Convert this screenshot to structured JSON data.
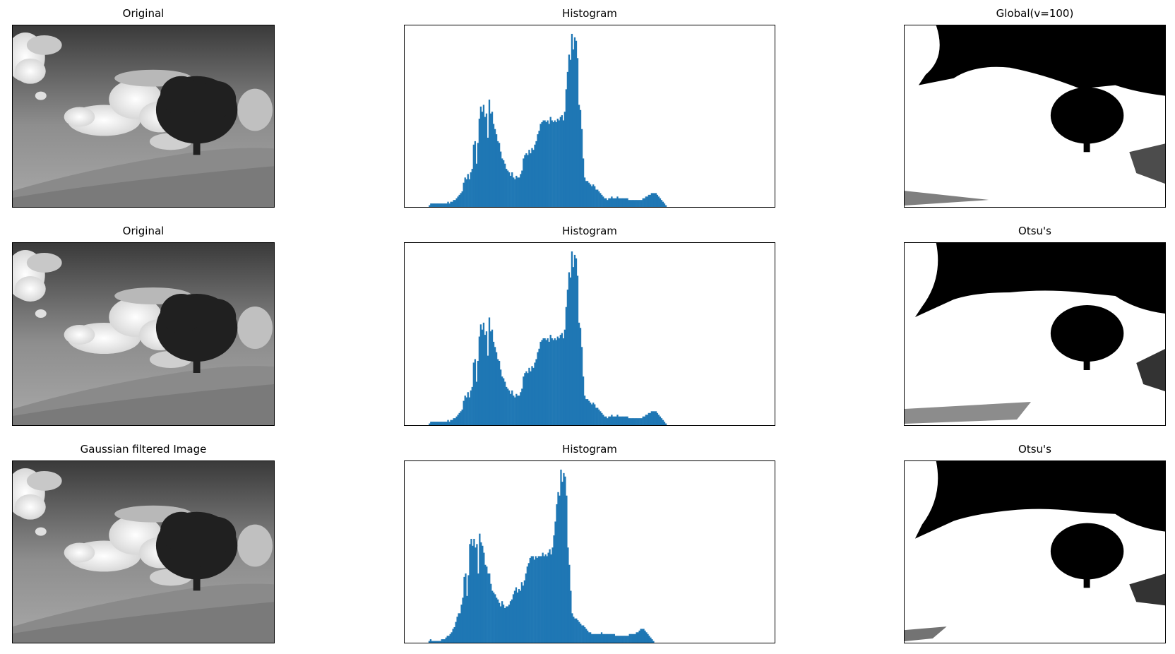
{
  "figure": {
    "rows": [
      {
        "image_title": "Original",
        "hist_title": "Histogram",
        "thresh_title": "Global(v=100)"
      },
      {
        "image_title": "Original",
        "hist_title": "Histogram",
        "thresh_title": "Otsu's"
      },
      {
        "image_title": "Gaussian filtered Image",
        "hist_title": "Histogram",
        "thresh_title": "Otsu's"
      }
    ]
  },
  "chart_data": [
    {
      "type": "bar",
      "title": "Histogram",
      "bin_range": [
        0,
        255
      ],
      "ylim": [
        0,
        1
      ],
      "grid": false,
      "ticks": false,
      "color": "#1f77b4",
      "values": [
        0.0,
        0.0,
        0.0,
        0.0,
        0.0,
        0.0,
        0.0,
        0.0,
        0.0,
        0.0,
        0.0,
        0.0,
        0.01,
        0.02,
        0.02,
        0.02,
        0.02,
        0.02,
        0.02,
        0.02,
        0.02,
        0.02,
        0.02,
        0.02,
        0.02,
        0.03,
        0.02,
        0.03,
        0.03,
        0.04,
        0.04,
        0.05,
        0.06,
        0.07,
        0.08,
        0.09,
        0.14,
        0.17,
        0.16,
        0.19,
        0.16,
        0.2,
        0.22,
        0.36,
        0.38,
        0.25,
        0.37,
        0.51,
        0.58,
        0.55,
        0.59,
        0.52,
        0.54,
        0.4,
        0.62,
        0.54,
        0.55,
        0.48,
        0.45,
        0.42,
        0.38,
        0.37,
        0.32,
        0.28,
        0.27,
        0.25,
        0.22,
        0.21,
        0.2,
        0.18,
        0.2,
        0.17,
        0.16,
        0.18,
        0.17,
        0.17,
        0.19,
        0.21,
        0.28,
        0.3,
        0.31,
        0.3,
        0.33,
        0.31,
        0.34,
        0.33,
        0.36,
        0.38,
        0.42,
        0.44,
        0.48,
        0.49,
        0.5,
        0.5,
        0.49,
        0.5,
        0.48,
        0.52,
        0.5,
        0.49,
        0.5,
        0.49,
        0.51,
        0.5,
        0.52,
        0.53,
        0.5,
        0.55,
        0.68,
        0.78,
        0.88,
        0.85,
        1.0,
        0.91,
        0.98,
        0.96,
        0.86,
        0.59,
        0.56,
        0.45,
        0.28,
        0.17,
        0.15,
        0.15,
        0.14,
        0.13,
        0.12,
        0.13,
        0.12,
        0.1,
        0.1,
        0.09,
        0.08,
        0.07,
        0.06,
        0.05,
        0.05,
        0.04,
        0.05,
        0.05,
        0.06,
        0.05,
        0.05,
        0.05,
        0.06,
        0.05,
        0.05,
        0.05,
        0.05,
        0.05,
        0.05,
        0.05,
        0.04,
        0.04,
        0.04,
        0.04,
        0.04,
        0.04,
        0.04,
        0.04,
        0.04,
        0.04,
        0.05,
        0.05,
        0.06,
        0.06,
        0.07,
        0.07,
        0.08,
        0.08,
        0.08,
        0.08,
        0.07,
        0.06,
        0.05,
        0.04,
        0.03,
        0.02,
        0.01,
        0.0,
        0.0,
        0.0,
        0.0,
        0.0,
        0.0,
        0.0,
        0.0,
        0.0,
        0.0,
        0.0,
        0.0,
        0.0,
        0.0,
        0.0,
        0.0,
        0.0,
        0.0,
        0.0,
        0.0,
        0.0,
        0.0,
        0.0,
        0.0,
        0.0,
        0.0,
        0.0,
        0.0,
        0.0,
        0.0,
        0.0,
        0.0,
        0.0,
        0.0,
        0.0,
        0.0,
        0.0,
        0.0,
        0.0,
        0.0,
        0.0,
        0.0,
        0.0,
        0.0,
        0.0,
        0.0,
        0.0,
        0.0,
        0.0,
        0.0,
        0.0,
        0.0,
        0.0,
        0.0,
        0.0,
        0.0,
        0.0,
        0.0,
        0.0,
        0.0,
        0.0,
        0.0,
        0.0,
        0.0,
        0.0,
        0.0,
        0.0,
        0.0,
        0.0,
        0.0,
        0.0
      ]
    },
    {
      "type": "bar",
      "title": "Histogram",
      "bin_range": [
        0,
        255
      ],
      "ylim": [
        0,
        1
      ],
      "grid": false,
      "ticks": false,
      "color": "#1f77b4",
      "values": [
        0.0,
        0.0,
        0.0,
        0.0,
        0.0,
        0.0,
        0.0,
        0.0,
        0.0,
        0.0,
        0.0,
        0.0,
        0.01,
        0.02,
        0.02,
        0.02,
        0.02,
        0.02,
        0.02,
        0.02,
        0.02,
        0.02,
        0.02,
        0.02,
        0.02,
        0.03,
        0.02,
        0.03,
        0.03,
        0.04,
        0.04,
        0.05,
        0.06,
        0.07,
        0.08,
        0.09,
        0.14,
        0.17,
        0.16,
        0.19,
        0.16,
        0.2,
        0.22,
        0.36,
        0.38,
        0.25,
        0.37,
        0.51,
        0.58,
        0.55,
        0.59,
        0.52,
        0.54,
        0.4,
        0.62,
        0.54,
        0.55,
        0.48,
        0.45,
        0.42,
        0.38,
        0.37,
        0.32,
        0.28,
        0.27,
        0.25,
        0.22,
        0.21,
        0.2,
        0.18,
        0.2,
        0.17,
        0.16,
        0.18,
        0.17,
        0.17,
        0.19,
        0.21,
        0.28,
        0.3,
        0.31,
        0.3,
        0.33,
        0.31,
        0.34,
        0.33,
        0.36,
        0.38,
        0.42,
        0.44,
        0.48,
        0.49,
        0.5,
        0.5,
        0.49,
        0.5,
        0.48,
        0.52,
        0.5,
        0.49,
        0.5,
        0.49,
        0.51,
        0.5,
        0.52,
        0.53,
        0.5,
        0.55,
        0.68,
        0.78,
        0.88,
        0.85,
        1.0,
        0.91,
        0.98,
        0.96,
        0.86,
        0.59,
        0.56,
        0.45,
        0.28,
        0.17,
        0.15,
        0.15,
        0.14,
        0.13,
        0.12,
        0.13,
        0.12,
        0.1,
        0.1,
        0.09,
        0.08,
        0.07,
        0.06,
        0.05,
        0.05,
        0.04,
        0.05,
        0.05,
        0.06,
        0.05,
        0.05,
        0.05,
        0.06,
        0.05,
        0.05,
        0.05,
        0.05,
        0.05,
        0.05,
        0.05,
        0.04,
        0.04,
        0.04,
        0.04,
        0.04,
        0.04,
        0.04,
        0.04,
        0.04,
        0.04,
        0.05,
        0.05,
        0.06,
        0.06,
        0.07,
        0.07,
        0.08,
        0.08,
        0.08,
        0.08,
        0.07,
        0.06,
        0.05,
        0.04,
        0.03,
        0.02,
        0.01,
        0.0,
        0.0,
        0.0,
        0.0,
        0.0,
        0.0,
        0.0,
        0.0,
        0.0,
        0.0,
        0.0,
        0.0,
        0.0,
        0.0,
        0.0,
        0.0,
        0.0,
        0.0,
        0.0,
        0.0,
        0.0,
        0.0,
        0.0,
        0.0,
        0.0,
        0.0,
        0.0,
        0.0,
        0.0,
        0.0,
        0.0,
        0.0,
        0.0,
        0.0,
        0.0,
        0.0,
        0.0,
        0.0,
        0.0,
        0.0,
        0.0,
        0.0,
        0.0,
        0.0,
        0.0,
        0.0,
        0.0,
        0.0,
        0.0,
        0.0,
        0.0,
        0.0,
        0.0,
        0.0,
        0.0,
        0.0,
        0.0,
        0.0,
        0.0,
        0.0,
        0.0,
        0.0,
        0.0,
        0.0,
        0.0,
        0.0,
        0.0,
        0.0,
        0.0,
        0.0,
        0.0
      ]
    },
    {
      "type": "bar",
      "title": "Histogram",
      "bin_range": [
        0,
        255
      ],
      "ylim": [
        0,
        1
      ],
      "grid": false,
      "ticks": false,
      "color": "#1f77b4",
      "values": [
        0.0,
        0.0,
        0.0,
        0.0,
        0.0,
        0.0,
        0.0,
        0.0,
        0.0,
        0.0,
        0.0,
        0.0,
        0.01,
        0.02,
        0.01,
        0.01,
        0.01,
        0.01,
        0.01,
        0.01,
        0.01,
        0.02,
        0.02,
        0.02,
        0.03,
        0.04,
        0.04,
        0.05,
        0.06,
        0.08,
        0.09,
        0.12,
        0.15,
        0.17,
        0.17,
        0.22,
        0.26,
        0.38,
        0.4,
        0.27,
        0.39,
        0.57,
        0.6,
        0.56,
        0.6,
        0.55,
        0.57,
        0.4,
        0.63,
        0.58,
        0.56,
        0.52,
        0.45,
        0.44,
        0.4,
        0.4,
        0.34,
        0.3,
        0.29,
        0.28,
        0.26,
        0.25,
        0.23,
        0.21,
        0.24,
        0.22,
        0.2,
        0.21,
        0.21,
        0.22,
        0.24,
        0.25,
        0.28,
        0.3,
        0.32,
        0.29,
        0.31,
        0.3,
        0.35,
        0.33,
        0.36,
        0.4,
        0.44,
        0.46,
        0.49,
        0.5,
        0.5,
        0.48,
        0.5,
        0.49,
        0.5,
        0.5,
        0.5,
        0.52,
        0.5,
        0.51,
        0.5,
        0.52,
        0.54,
        0.51,
        0.55,
        0.62,
        0.7,
        0.8,
        0.87,
        0.85,
        1.0,
        0.93,
        0.98,
        0.96,
        0.85,
        0.55,
        0.45,
        0.3,
        0.17,
        0.15,
        0.14,
        0.14,
        0.13,
        0.12,
        0.11,
        0.1,
        0.1,
        0.09,
        0.08,
        0.07,
        0.06,
        0.06,
        0.05,
        0.05,
        0.05,
        0.05,
        0.05,
        0.05,
        0.05,
        0.06,
        0.05,
        0.05,
        0.05,
        0.05,
        0.05,
        0.05,
        0.05,
        0.05,
        0.05,
        0.04,
        0.04,
        0.04,
        0.04,
        0.04,
        0.04,
        0.04,
        0.04,
        0.04,
        0.04,
        0.05,
        0.05,
        0.05,
        0.05,
        0.05,
        0.06,
        0.06,
        0.07,
        0.08,
        0.08,
        0.08,
        0.07,
        0.06,
        0.05,
        0.04,
        0.03,
        0.02,
        0.01,
        0.0,
        0.0,
        0.0,
        0.0,
        0.0,
        0.0,
        0.0,
        0.0,
        0.0,
        0.0,
        0.0,
        0.0,
        0.0,
        0.0,
        0.0,
        0.0,
        0.0,
        0.0,
        0.0,
        0.0,
        0.0,
        0.0,
        0.0,
        0.0,
        0.0,
        0.0,
        0.0,
        0.0,
        0.0,
        0.0,
        0.0,
        0.0,
        0.0,
        0.0,
        0.0,
        0.0,
        0.0,
        0.0,
        0.0,
        0.0,
        0.0,
        0.0,
        0.0,
        0.0,
        0.0,
        0.0,
        0.0,
        0.0,
        0.0,
        0.0,
        0.0,
        0.0,
        0.0,
        0.0,
        0.0,
        0.0,
        0.0,
        0.0,
        0.0,
        0.0,
        0.0,
        0.0,
        0.0,
        0.0,
        0.0,
        0.0,
        0.0,
        0.0,
        0.0,
        0.0,
        0.0,
        0.0,
        0.0,
        0.0,
        0.0,
        0.0,
        0.0,
        0.0,
        0.0,
        0.0,
        0.0
      ]
    }
  ]
}
